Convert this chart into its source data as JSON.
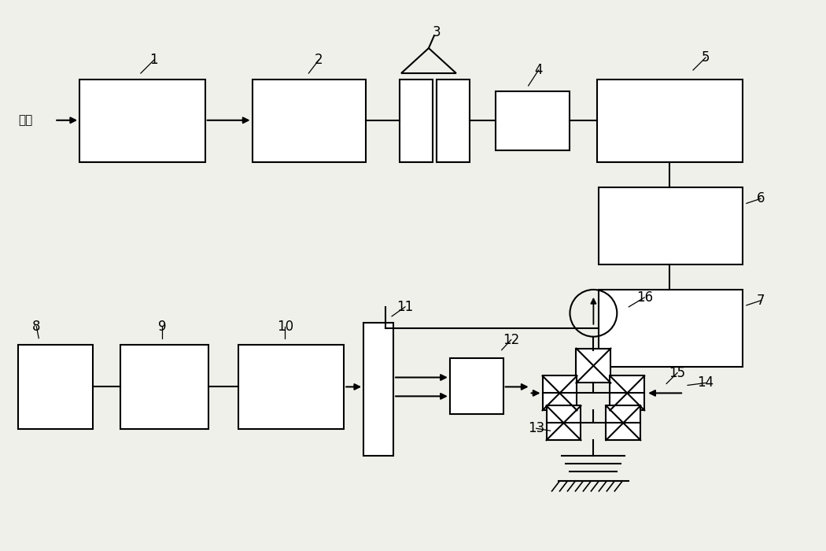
{
  "bg_color": "#f0f0eb",
  "line_color": "#000000",
  "lw": 1.5,
  "label_fontsize": 12
}
